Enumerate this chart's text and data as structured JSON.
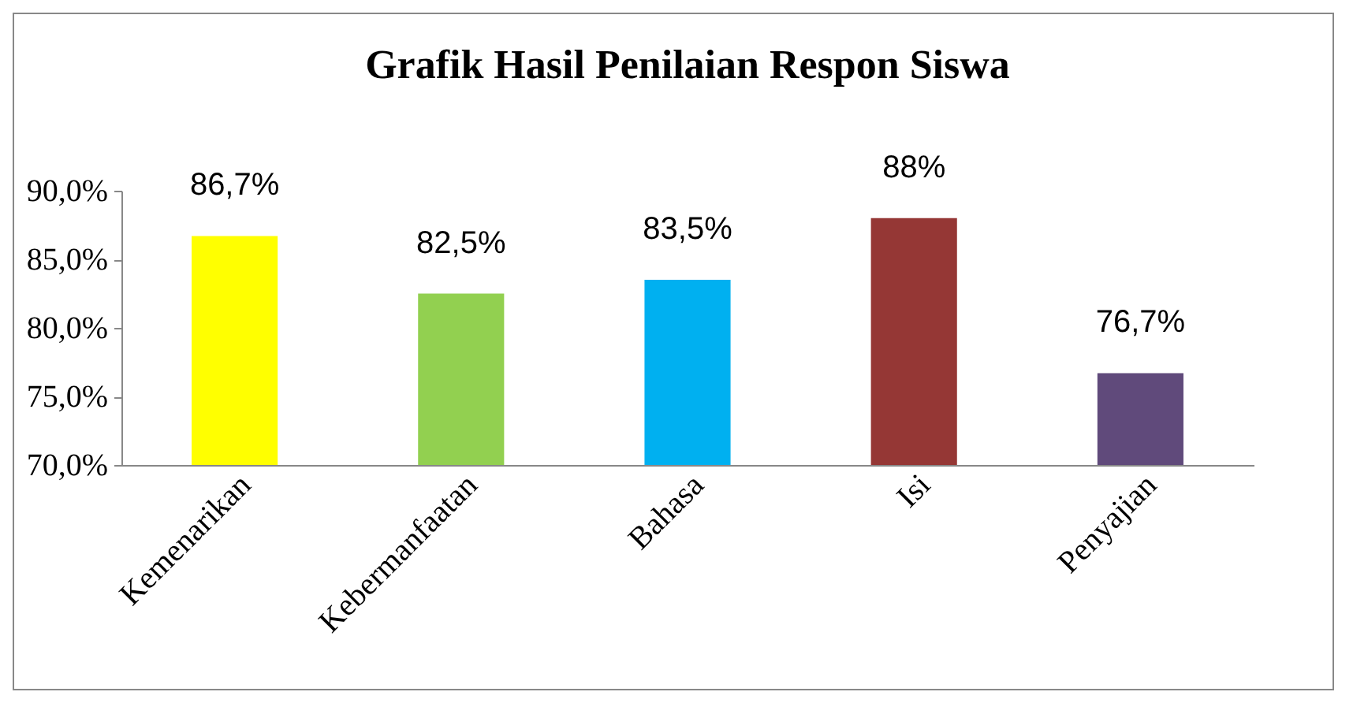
{
  "chart_data": {
    "type": "bar",
    "title": "Grafik Hasil Penilaian Respon Siswa",
    "categories": [
      "Kemenarikan",
      "Kebermanfaatan",
      "Bahasa",
      "Isi",
      "Penyajian"
    ],
    "values": [
      86.7,
      82.5,
      83.5,
      88,
      76.7
    ],
    "colors": [
      "#ffff00",
      "#92d050",
      "#00b0f0",
      "#953735",
      "#604a7b"
    ],
    "value_labels": [
      "86,7%",
      "82,5%",
      "83,5%",
      "88%",
      "76,7%"
    ],
    "ylim": [
      70,
      90
    ],
    "yticks": [
      {
        "value": 70,
        "label": "70,0%"
      },
      {
        "value": 75,
        "label": "75,0%"
      },
      {
        "value": 80,
        "label": "80,0%"
      },
      {
        "value": 85,
        "label": "85,0%"
      },
      {
        "value": 90,
        "label": "90,0%"
      }
    ],
    "grid": false
  }
}
